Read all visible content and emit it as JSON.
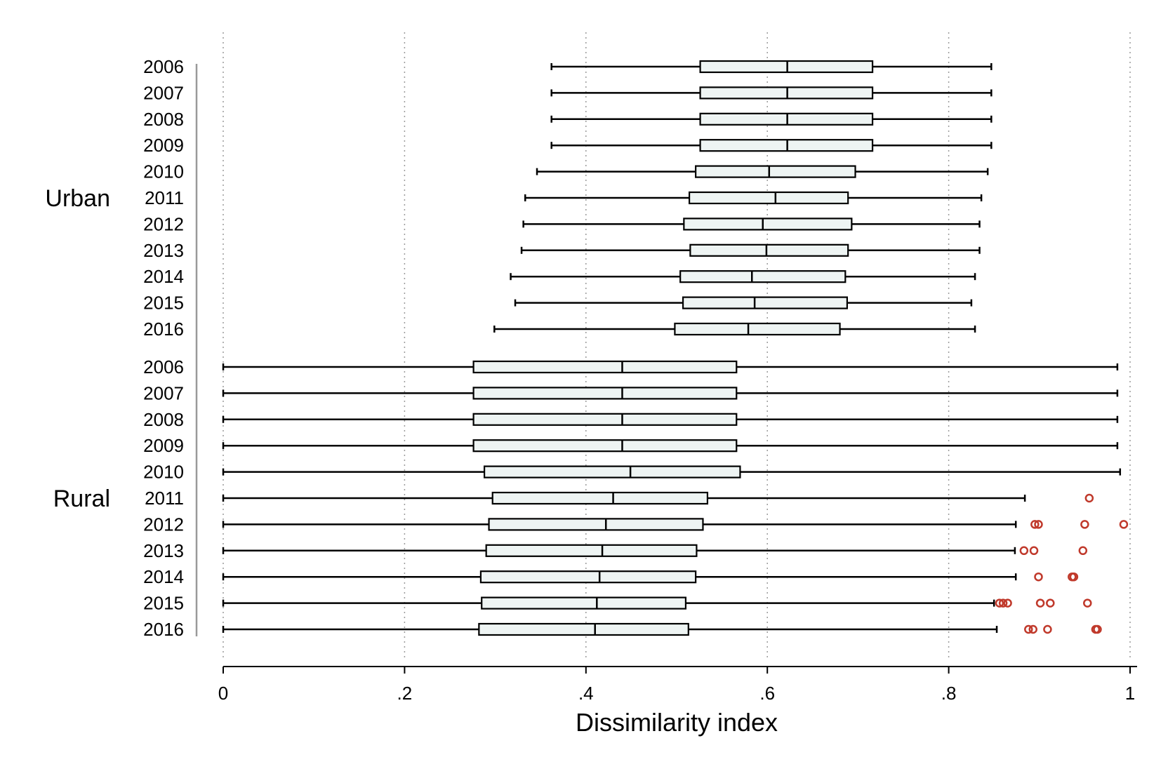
{
  "chart_data": {
    "type": "boxplot",
    "orientation": "horizontal",
    "xlabel": "Dissimilarity index",
    "xlim": [
      0,
      1
    ],
    "x_ticks": [
      0,
      0.2,
      0.4,
      0.6,
      0.8,
      1
    ],
    "x_tick_labels": [
      "0",
      ".2",
      ".4",
      ".6",
      ".8",
      "1"
    ],
    "grid": "vertical dotted",
    "colors": {
      "box_fill": "#eef4f3",
      "line": "#000000",
      "outlier": "#c0392b",
      "grid": "#9a9a9a"
    },
    "groups": [
      {
        "name": "Urban",
        "rows": [
          {
            "label": "2006",
            "whisker_low": 0.362,
            "q1": 0.526,
            "median": 0.622,
            "q3": 0.716,
            "whisker_high": 0.847,
            "outliers": []
          },
          {
            "label": "2007",
            "whisker_low": 0.362,
            "q1": 0.526,
            "median": 0.622,
            "q3": 0.716,
            "whisker_high": 0.847,
            "outliers": []
          },
          {
            "label": "2008",
            "whisker_low": 0.362,
            "q1": 0.526,
            "median": 0.622,
            "q3": 0.716,
            "whisker_high": 0.847,
            "outliers": []
          },
          {
            "label": "2009",
            "whisker_low": 0.362,
            "q1": 0.526,
            "median": 0.622,
            "q3": 0.716,
            "whisker_high": 0.847,
            "outliers": []
          },
          {
            "label": "2010",
            "whisker_low": 0.346,
            "q1": 0.521,
            "median": 0.602,
            "q3": 0.697,
            "whisker_high": 0.843,
            "outliers": []
          },
          {
            "label": "2011",
            "whisker_low": 0.333,
            "q1": 0.514,
            "median": 0.609,
            "q3": 0.689,
            "whisker_high": 0.836,
            "outliers": []
          },
          {
            "label": "2012",
            "whisker_low": 0.331,
            "q1": 0.508,
            "median": 0.595,
            "q3": 0.693,
            "whisker_high": 0.834,
            "outliers": []
          },
          {
            "label": "2013",
            "whisker_low": 0.329,
            "q1": 0.515,
            "median": 0.599,
            "q3": 0.689,
            "whisker_high": 0.834,
            "outliers": []
          },
          {
            "label": "2014",
            "whisker_low": 0.317,
            "q1": 0.504,
            "median": 0.583,
            "q3": 0.686,
            "whisker_high": 0.829,
            "outliers": []
          },
          {
            "label": "2015",
            "whisker_low": 0.322,
            "q1": 0.507,
            "median": 0.586,
            "q3": 0.688,
            "whisker_high": 0.825,
            "outliers": []
          },
          {
            "label": "2016",
            "whisker_low": 0.299,
            "q1": 0.498,
            "median": 0.579,
            "q3": 0.68,
            "whisker_high": 0.829,
            "outliers": []
          }
        ]
      },
      {
        "name": "Rural",
        "rows": [
          {
            "label": "2006",
            "whisker_low": 0.0,
            "q1": 0.276,
            "median": 0.44,
            "q3": 0.566,
            "whisker_high": 0.986,
            "outliers": []
          },
          {
            "label": "2007",
            "whisker_low": 0.0,
            "q1": 0.276,
            "median": 0.44,
            "q3": 0.566,
            "whisker_high": 0.986,
            "outliers": []
          },
          {
            "label": "2008",
            "whisker_low": 0.0,
            "q1": 0.276,
            "median": 0.44,
            "q3": 0.566,
            "whisker_high": 0.986,
            "outliers": []
          },
          {
            "label": "2009",
            "whisker_low": 0.0,
            "q1": 0.276,
            "median": 0.44,
            "q3": 0.566,
            "whisker_high": 0.986,
            "outliers": []
          },
          {
            "label": "2010",
            "whisker_low": 0.0,
            "q1": 0.288,
            "median": 0.449,
            "q3": 0.57,
            "whisker_high": 0.989,
            "outliers": []
          },
          {
            "label": "2011",
            "whisker_low": 0.0,
            "q1": 0.297,
            "median": 0.43,
            "q3": 0.534,
            "whisker_high": 0.884,
            "outliers": [
              0.955
            ]
          },
          {
            "label": "2012",
            "whisker_low": 0.0,
            "q1": 0.293,
            "median": 0.422,
            "q3": 0.529,
            "whisker_high": 0.874,
            "outliers": [
              0.895,
              0.899,
              0.95,
              0.993
            ]
          },
          {
            "label": "2013",
            "whisker_low": 0.0,
            "q1": 0.29,
            "median": 0.418,
            "q3": 0.522,
            "whisker_high": 0.873,
            "outliers": [
              0.883,
              0.894,
              0.948
            ]
          },
          {
            "label": "2014",
            "whisker_low": 0.0,
            "q1": 0.284,
            "median": 0.415,
            "q3": 0.521,
            "whisker_high": 0.874,
            "outliers": [
              0.899,
              0.936,
              0.938
            ]
          },
          {
            "label": "2015",
            "whisker_low": 0.0,
            "q1": 0.285,
            "median": 0.412,
            "q3": 0.51,
            "whisker_high": 0.85,
            "outliers": [
              0.856,
              0.86,
              0.865,
              0.901,
              0.912,
              0.953
            ]
          },
          {
            "label": "2016",
            "whisker_low": 0.0,
            "q1": 0.282,
            "median": 0.41,
            "q3": 0.513,
            "whisker_high": 0.853,
            "outliers": [
              0.888,
              0.893,
              0.909,
              0.962,
              0.964
            ]
          }
        ]
      }
    ]
  }
}
